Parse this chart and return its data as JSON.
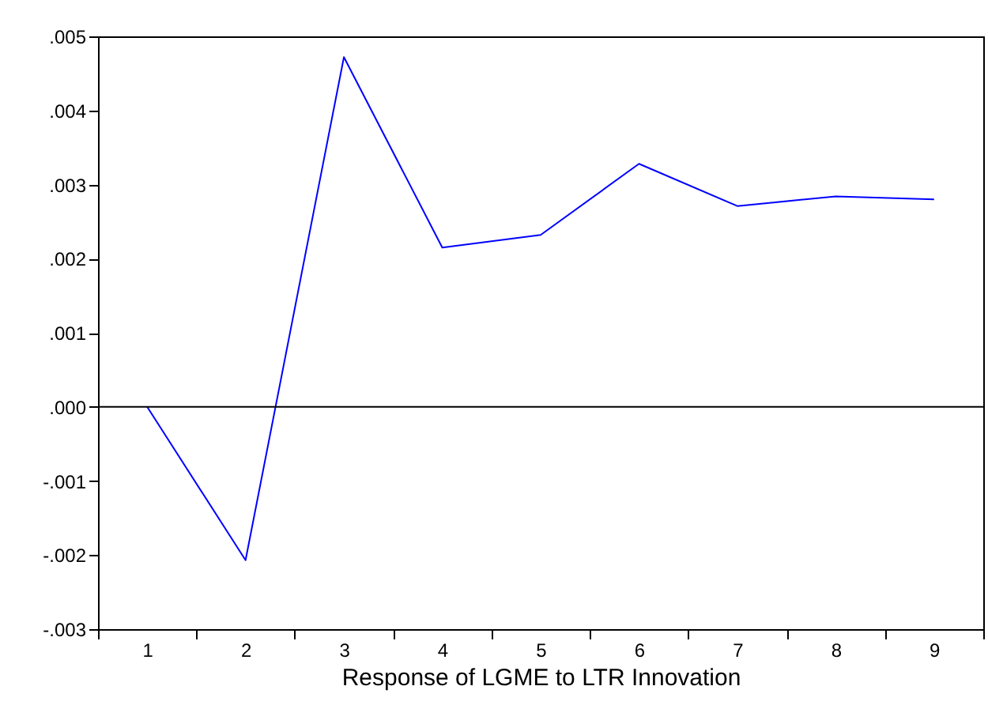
{
  "chart_data": {
    "type": "line",
    "xlabel": "Response of LGME to LTR Innovation",
    "categories": [
      "1",
      "2",
      "3",
      "4",
      "5",
      "6",
      "7",
      "8",
      "9"
    ],
    "series": [
      {
        "color": "#0000ff",
        "values": [
          0.0,
          -0.00207,
          0.00472,
          0.00215,
          0.00232,
          0.00328,
          0.00271,
          0.00284,
          0.0028
        ]
      }
    ],
    "ylim": [
      -0.003,
      0.005
    ],
    "yticks": [
      {
        "value": -0.003,
        "label": "-.003"
      },
      {
        "value": -0.002,
        "label": "-.002"
      },
      {
        "value": -0.001,
        "label": "-.001"
      },
      {
        "value": 0,
        "label": ".000"
      },
      {
        "value": 0.001,
        "label": ".001"
      },
      {
        "value": 0.002,
        "label": ".002"
      },
      {
        "value": 0.003,
        "label": ".003"
      },
      {
        "value": 0.004,
        "label": ".004"
      },
      {
        "value": 0.005,
        "label": ".005"
      }
    ],
    "ref_lines": [
      {
        "axis": "y",
        "value": 0,
        "color": "#000000"
      }
    ],
    "grid": false,
    "marker": "none",
    "line_style": "solid"
  }
}
